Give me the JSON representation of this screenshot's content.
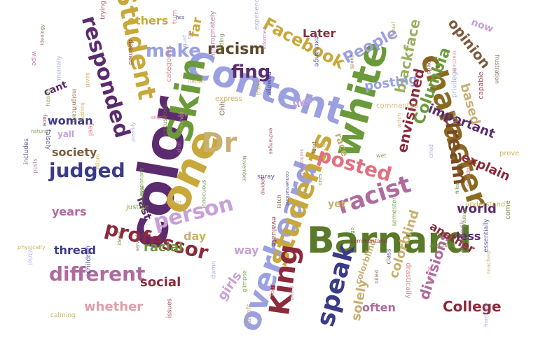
{
  "colors": {
    "background": "#ffffff",
    "purple": "#5c2a6e",
    "olive": "#5a7a2a",
    "gold": "#c8a83a",
    "lavender": "#9aa0e0",
    "mauve": "#b06aa0",
    "dark_red": "#8b2a3a",
    "navy": "#3a3a88",
    "pink": "#e07080",
    "tan": "#c8b070",
    "green": "#6a9a3a",
    "brown": "#7a5a3a"
  },
  "words": [
    {
      "text": "color",
      "color": "#5c2a6e"
    },
    {
      "text": "Barnard",
      "color": "#5a7a2a"
    },
    {
      "text": "Content",
      "color": "#9aa0e0"
    },
    {
      "text": "one",
      "color": "#c8a83a"
    },
    {
      "text": "overheard",
      "color": "#9aa0e0"
    },
    {
      "text": "Skin",
      "color": "#6a9a3a"
    },
    {
      "text": "white",
      "color": "#6a9a3a"
    },
    {
      "text": "character",
      "color": "#8a6a20"
    },
    {
      "text": "students",
      "color": "#c8a83a"
    },
    {
      "text": "King",
      "color": "#8b2a3a"
    },
    {
      "text": "Dr",
      "color": "#c8b070"
    },
    {
      "text": "speak",
      "color": "#3a3a88"
    },
    {
      "text": "racist",
      "color": "#b06aa0"
    },
    {
      "text": "person",
      "color": "#c8a0d8"
    },
    {
      "text": "professor",
      "color": "#8b2a3a"
    },
    {
      "text": "different",
      "color": "#b06aa0"
    },
    {
      "text": "Student",
      "color": "#c8a83a"
    },
    {
      "text": "responded",
      "color": "#5c2a6e"
    },
    {
      "text": "judged",
      "color": "#3a3a88"
    },
    {
      "text": "make",
      "color": "#9aa0e0"
    },
    {
      "text": "fing",
      "color": "#5c2a6e"
    },
    {
      "text": "posted",
      "color": "#e07080"
    },
    {
      "text": "dream",
      "color": "#7a4a20"
    },
    {
      "text": "Facebook",
      "color": "#c8a83a"
    },
    {
      "text": "racism",
      "color": "#5c4a2a"
    },
    {
      "text": "People",
      "color": "#9aa0e0"
    },
    {
      "text": "blackface",
      "color": "#9ab060"
    },
    {
      "text": "opinion",
      "color": "#7a5a3a"
    },
    {
      "text": "Columbia",
      "color": "#6a9a3a"
    },
    {
      "text": "posting",
      "color": "#9aa0e0"
    },
    {
      "text": "envisioned",
      "color": "#8b2a3a"
    },
    {
      "text": "important",
      "color": "#5c2a6e"
    },
    {
      "text": "based",
      "color": "#c8b070"
    },
    {
      "text": "explain",
      "color": "#8b2a3a"
    },
    {
      "text": "world",
      "color": "#5c2a6e"
    },
    {
      "text": "divisions",
      "color": "#b06aa0"
    },
    {
      "text": "College",
      "color": "#8b2a3a"
    },
    {
      "text": "colorblind",
      "color": "#c8b070"
    },
    {
      "text": "solely",
      "color": "#c8b070"
    },
    {
      "text": "often",
      "color": "#b06aa0"
    },
    {
      "text": "another",
      "color": "#8b2a3a"
    },
    {
      "text": "less",
      "color": "#5c2a6e"
    },
    {
      "text": "whether",
      "color": "#e0a0a8"
    },
    {
      "text": "social",
      "color": "#8b2a3a"
    },
    {
      "text": "girls",
      "color": "#c8a0d8"
    },
    {
      "text": "way",
      "color": "#c8a0d8"
    },
    {
      "text": "day",
      "color": "#c8b070"
    },
    {
      "text": "racial",
      "color": "#6a9a3a"
    },
    {
      "text": "thread",
      "color": "#3a3a88"
    },
    {
      "text": "years",
      "color": "#b06aa0"
    },
    {
      "text": "last",
      "color": "#5c2a6e"
    },
    {
      "text": "society",
      "color": "#7a5a3a"
    },
    {
      "text": "woman",
      "color": "#3a3a88"
    },
    {
      "text": "yall",
      "color": "#c8a0d8"
    },
    {
      "text": "cant",
      "color": "#5c2a6e"
    },
    {
      "text": "others",
      "color": "#c8a83a"
    },
    {
      "text": "far",
      "color": "#c8a83a"
    },
    {
      "text": "like",
      "color": "#c8a0d8"
    },
    {
      "text": "race",
      "color": "#c8b070"
    },
    {
      "text": "yet",
      "color": "#c8b070"
    },
    {
      "text": "Later",
      "color": "#8b2a3a"
    },
    {
      "text": "now",
      "color": "#c8a0d8"
    },
    {
      "text": "colorblind",
      "color": "#c8b070"
    }
  ],
  "small_words": [
    "divided",
    "November",
    "express",
    "allowed",
    "classrooms",
    "frantically",
    "frustration",
    "categories",
    "responses",
    "witch",
    "capable",
    "expected",
    "gives",
    "falsely",
    "idiot",
    "cried",
    "served",
    "drastically",
    "semester",
    "finished",
    "commentand",
    "innocuous",
    "prove",
    "children",
    "wipe",
    "privilege",
    "ideology",
    "precise",
    "hearts",
    "nation",
    "trying",
    "holding",
    "physically",
    "essentially",
    "appropriately",
    "mentally",
    "feed",
    "couldnt",
    "shared",
    "beliefs",
    "evaluate",
    "come",
    "calming",
    "class",
    "outrageously",
    "warn",
    "spoke",
    "turn",
    "natural",
    "commented",
    "space",
    "filled",
    "trans",
    "hes",
    "peers",
    "possibly",
    "billed",
    "angrily",
    "justice",
    "reached",
    "deemed",
    "discussions",
    "understand",
    "exchange",
    "ask",
    "damn",
    "latch",
    "feel",
    "glimpse",
    "page",
    "face",
    "ones",
    "idiom",
    "conversations",
    "informed",
    "experiences",
    "insignificant",
    "reactions",
    "accused",
    "similar",
    "issues",
    "ago",
    "nothing",
    "spray",
    "tan",
    "August",
    "Ohh",
    "four",
    "wet",
    "fear",
    "exchanges",
    "ideals",
    "virtual",
    "includes",
    "posts",
    "vitriol"
  ]
}
